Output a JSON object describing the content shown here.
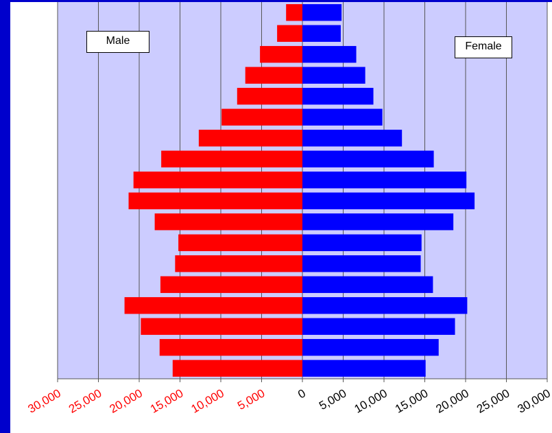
{
  "chart_data": {
    "type": "bar",
    "orientation": "horizontal",
    "layout": "population-pyramid",
    "xlim": [
      -30000,
      30000
    ],
    "tick_values": [
      -30000,
      -25000,
      -20000,
      -15000,
      -10000,
      -5000,
      0,
      5000,
      10000,
      15000,
      20000,
      25000,
      30000
    ],
    "tick_labels": [
      "30,000",
      "25,000",
      "20,000",
      "15,000",
      "10,000",
      "5,000",
      "0",
      "5,000",
      "10,000",
      "15,000",
      "20,000",
      "25,000",
      "30,000"
    ],
    "grid": true,
    "series": [
      {
        "name": "Male",
        "color": "#ff0000",
        "values": [
          15900,
          17500,
          19800,
          21800,
          17400,
          15600,
          15200,
          18100,
          21300,
          20700,
          17300,
          12700,
          9900,
          8000,
          7000,
          5200,
          3100,
          2000
        ]
      },
      {
        "name": "Female",
        "color": "#0000ff",
        "values": [
          15100,
          16700,
          18700,
          20200,
          16000,
          14500,
          14600,
          18500,
          21100,
          20100,
          16100,
          12200,
          9800,
          8700,
          7700,
          6600,
          4700,
          4800
        ]
      }
    ],
    "colors": {
      "plot_background": "#ccccff",
      "gridline": "#555555",
      "positive_tick_label": "#000000",
      "negative_tick_label": "#ff0000"
    }
  },
  "legend": {
    "male_label": "Male",
    "female_label": "Female"
  }
}
